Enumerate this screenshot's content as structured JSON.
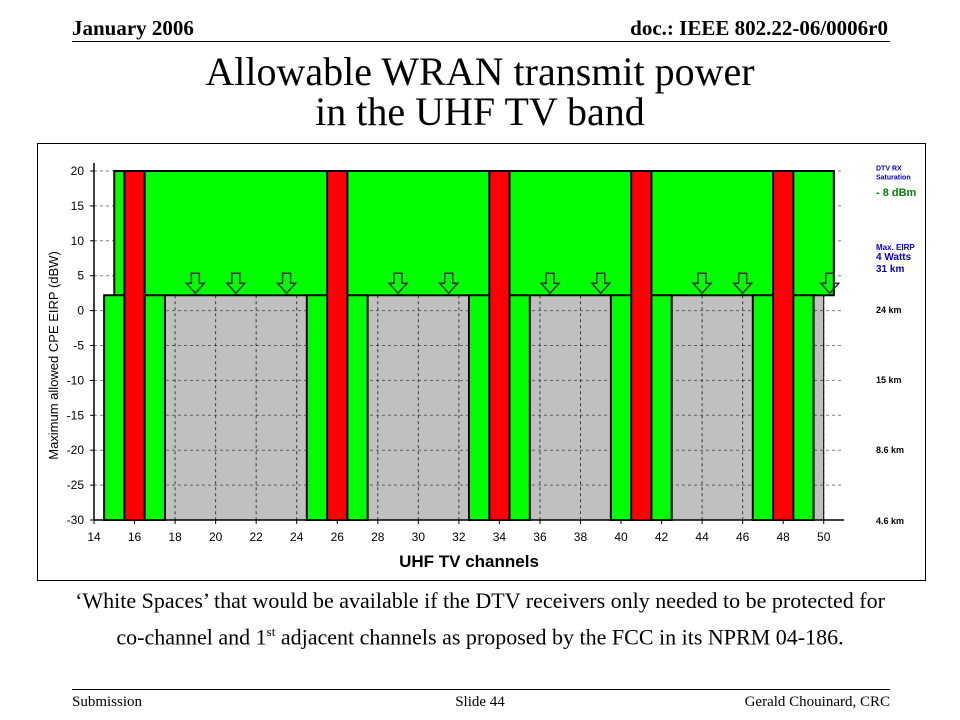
{
  "header": {
    "date": "January 2006",
    "doc": "doc.: IEEE 802.22-06/0006r0"
  },
  "title": {
    "line1": "Allowable WRAN transmit power",
    "line2": "in the UHF TV band"
  },
  "caption": {
    "part1": "‘White Spaces’ that would be available if the DTV receivers only needed to be protected for co-channel and 1",
    "superscript": "st",
    "part2": " adjacent channels as proposed by the FCC in its NPRM 04-186."
  },
  "footer": {
    "left": "Submission",
    "center": "Slide 44",
    "right": "Gerald Chouinard, CRC"
  },
  "chart_data": {
    "type": "bar",
    "xlabel": "UHF TV channels",
    "ylabel": "Maximum allowed CPE EIRP (dBW)",
    "xlim": [
      14,
      51
    ],
    "ylim": [
      -30,
      20
    ],
    "xticks": [
      "14",
      "16",
      "18",
      "20",
      "22",
      "24",
      "26",
      "28",
      "30",
      "32",
      "34",
      "36",
      "38",
      "40",
      "42",
      "44",
      "46",
      "48",
      "50"
    ],
    "yticks": [
      "20",
      "15",
      "10",
      "5",
      "0",
      "-5",
      "-10",
      "-15",
      "-20",
      "-25",
      "-30"
    ],
    "grid": true,
    "colors": {
      "allowed": "#00ff00",
      "occupied_dtv": "#ff0000",
      "white_space": "#c0c0c0",
      "label_green": "#008000",
      "label_blue": "#0000cc"
    },
    "background_level_dbw": 20,
    "white_space_level_dbw": 2.2,
    "dtv_channels": [
      15.5,
      25.5,
      33.5,
      40.5,
      47.5
    ],
    "adjacent_channel_pairs": [
      [
        14.5,
        16.5
      ],
      [
        24.5,
        26.5
      ],
      [
        32.5,
        34.5
      ],
      [
        39.5,
        41.5
      ],
      [
        46.5,
        48.5
      ]
    ],
    "white_space_arrows_at_channel": [
      19,
      21,
      23.5,
      29,
      31.5,
      36.5,
      39,
      44,
      46,
      50.3
    ],
    "right_annotations": [
      {
        "lines": [
          "DTV RX",
          "Saturation"
        ],
        "color": "blue"
      },
      {
        "lines": [
          "- 8 dBm"
        ],
        "color": "green"
      },
      {
        "lines": [
          "Max. EIRP",
          "4 Watts",
          "31 km"
        ],
        "color": "blue"
      },
      {
        "lines": [
          "24 km"
        ],
        "color": "black"
      },
      {
        "lines": [
          "15 km"
        ],
        "color": "black"
      },
      {
        "lines": [
          "8.6 km"
        ],
        "color": "black"
      },
      {
        "lines": [
          "4.6 km"
        ],
        "color": "black"
      }
    ]
  }
}
